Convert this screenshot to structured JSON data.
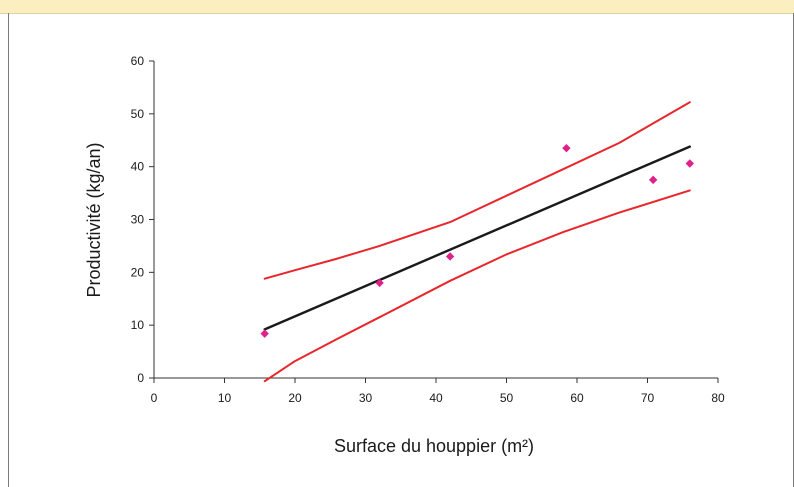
{
  "colors": {
    "band": "#fbefc1",
    "fit_line": "#1a1a1a",
    "confidence_band": "#e8262b",
    "points": "#e0218a",
    "axis": "#333333"
  },
  "chart_data": {
    "type": "scatter",
    "title": "",
    "xlabel": "Surface du houppier (m²)",
    "ylabel": "Productivité (kg/an)",
    "xlim": [
      0,
      80
    ],
    "ylim": [
      0,
      60
    ],
    "x_ticks": [
      0,
      10,
      20,
      30,
      40,
      50,
      60,
      70,
      80
    ],
    "y_ticks": [
      0,
      10,
      20,
      30,
      40,
      50,
      60
    ],
    "grid": false,
    "legend": "none",
    "points": [
      {
        "x": 15.7,
        "y": 8.4
      },
      {
        "x": 32,
        "y": 18
      },
      {
        "x": 42,
        "y": 23
      },
      {
        "x": 58.5,
        "y": 43.5
      },
      {
        "x": 70.8,
        "y": 37.5
      },
      {
        "x": 76,
        "y": 40.6
      }
    ],
    "lines": [
      {
        "role": "fit",
        "x": [
          15.7,
          76
        ],
        "y": [
          9.2,
          43.8
        ]
      },
      {
        "role": "upper-band",
        "x": [
          15.7,
          20,
          26,
          32,
          42,
          50,
          58,
          66,
          76
        ],
        "y": [
          18.8,
          20.4,
          22.6,
          25,
          29.5,
          34.5,
          39.5,
          44.5,
          52.2
        ]
      },
      {
        "role": "lower-band",
        "x": [
          15.7,
          20,
          26,
          32,
          42,
          50,
          58,
          66,
          76
        ],
        "y": [
          -0.6,
          3.2,
          7.4,
          11.5,
          18.4,
          23.4,
          27.6,
          31.3,
          35.5
        ]
      }
    ]
  }
}
